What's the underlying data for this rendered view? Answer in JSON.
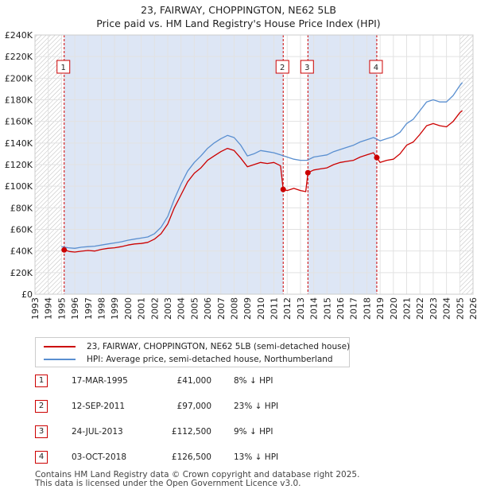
{
  "title_line1": "23, FAIRWAY, CHOPPINGTON, NE62 5LB",
  "title_line2": "Price paid vs. HM Land Registry's House Price Index (HPI)",
  "colors": {
    "price_line": "#cc0000",
    "hpi_line": "#5a8fd0",
    "band": "#dde6f5",
    "dash": "#cc0000"
  },
  "chart_data": {
    "type": "line",
    "x_range": [
      1993.0,
      2026.0
    ],
    "ylim": [
      0,
      240000
    ],
    "y_ticks": [
      {
        "value": 0,
        "label": "£0"
      },
      {
        "value": 20000,
        "label": "£20K"
      },
      {
        "value": 40000,
        "label": "£40K"
      },
      {
        "value": 60000,
        "label": "£60K"
      },
      {
        "value": 80000,
        "label": "£80K"
      },
      {
        "value": 100000,
        "label": "£100K"
      },
      {
        "value": 120000,
        "label": "£120K"
      },
      {
        "value": 140000,
        "label": "£140K"
      },
      {
        "value": 160000,
        "label": "£160K"
      },
      {
        "value": 180000,
        "label": "£180K"
      },
      {
        "value": 200000,
        "label": "£200K"
      },
      {
        "value": 220000,
        "label": "£220K"
      },
      {
        "value": 240000,
        "label": "£240K"
      }
    ],
    "x_ticks": [
      "1993",
      "1994",
      "1995",
      "1996",
      "1997",
      "1998",
      "1999",
      "2000",
      "2001",
      "2002",
      "2003",
      "2004",
      "2005",
      "2006",
      "2007",
      "2008",
      "2009",
      "2010",
      "2011",
      "2012",
      "2013",
      "2014",
      "2015",
      "2016",
      "2017",
      "2018",
      "2019",
      "2020",
      "2021",
      "2022",
      "2023",
      "2024",
      "2025",
      "2026"
    ],
    "shaded_bands": [
      [
        1995.2,
        2011.7
      ],
      [
        2013.56,
        2018.75
      ]
    ],
    "hatched_ranges": [
      [
        1993.0,
        1995.0
      ],
      [
        2025.0,
        2026.0
      ]
    ],
    "series": [
      {
        "name": "23, FAIRWAY, CHOPPINGTON, NE62 5LB (semi-detached house)",
        "color": "#cc0000",
        "points": [
          [
            1995.2,
            41000
          ],
          [
            1995.6,
            39500
          ],
          [
            1996.0,
            39000
          ],
          [
            1996.5,
            39800
          ],
          [
            1997.0,
            40500
          ],
          [
            1997.5,
            40000
          ],
          [
            1998.0,
            41500
          ],
          [
            1998.5,
            42500
          ],
          [
            1999.0,
            43000
          ],
          [
            1999.5,
            44000
          ],
          [
            2000.0,
            45500
          ],
          [
            2000.5,
            46500
          ],
          [
            2001.0,
            47000
          ],
          [
            2001.5,
            48000
          ],
          [
            2002.0,
            51000
          ],
          [
            2002.5,
            56000
          ],
          [
            2003.0,
            65000
          ],
          [
            2003.5,
            80000
          ],
          [
            2004.0,
            92000
          ],
          [
            2004.5,
            104000
          ],
          [
            2005.0,
            112000
          ],
          [
            2005.5,
            117000
          ],
          [
            2006.0,
            124000
          ],
          [
            2006.5,
            128000
          ],
          [
            2007.0,
            132000
          ],
          [
            2007.5,
            135000
          ],
          [
            2008.0,
            133000
          ],
          [
            2008.5,
            126000
          ],
          [
            2009.0,
            118000
          ],
          [
            2009.5,
            120000
          ],
          [
            2010.0,
            122000
          ],
          [
            2010.5,
            121000
          ],
          [
            2011.0,
            122000
          ],
          [
            2011.5,
            119000
          ],
          [
            2011.7,
            97000
          ],
          [
            2012.0,
            96000
          ],
          [
            2012.5,
            98000
          ],
          [
            2013.0,
            96000
          ],
          [
            2013.4,
            95000
          ],
          [
            2013.56,
            112500
          ],
          [
            2014.0,
            115000
          ],
          [
            2014.5,
            116000
          ],
          [
            2015.0,
            117000
          ],
          [
            2015.5,
            120000
          ],
          [
            2016.0,
            122000
          ],
          [
            2016.5,
            123000
          ],
          [
            2017.0,
            124000
          ],
          [
            2017.5,
            127000
          ],
          [
            2018.0,
            129000
          ],
          [
            2018.5,
            131000
          ],
          [
            2018.75,
            126500
          ],
          [
            2019.0,
            122000
          ],
          [
            2019.5,
            124000
          ],
          [
            2020.0,
            125000
          ],
          [
            2020.5,
            130000
          ],
          [
            2021.0,
            138000
          ],
          [
            2021.5,
            141000
          ],
          [
            2022.0,
            148000
          ],
          [
            2022.5,
            156000
          ],
          [
            2023.0,
            158000
          ],
          [
            2023.5,
            156000
          ],
          [
            2024.0,
            155000
          ],
          [
            2024.5,
            160000
          ],
          [
            2025.0,
            168000
          ],
          [
            2025.2,
            170000
          ]
        ]
      },
      {
        "name": "HPI: Average price, semi-detached house, Northumberland",
        "color": "#5a8fd0",
        "points": [
          [
            1995.0,
            44000
          ],
          [
            1995.5,
            43000
          ],
          [
            1996.0,
            42500
          ],
          [
            1996.5,
            43500
          ],
          [
            1997.0,
            44000
          ],
          [
            1997.5,
            44500
          ],
          [
            1998.0,
            45500
          ],
          [
            1998.5,
            46500
          ],
          [
            1999.0,
            47500
          ],
          [
            1999.5,
            48500
          ],
          [
            2000.0,
            50000
          ],
          [
            2000.5,
            51000
          ],
          [
            2001.0,
            52000
          ],
          [
            2001.5,
            53000
          ],
          [
            2002.0,
            56000
          ],
          [
            2002.5,
            62000
          ],
          [
            2003.0,
            72000
          ],
          [
            2003.5,
            88000
          ],
          [
            2004.0,
            102000
          ],
          [
            2004.5,
            114000
          ],
          [
            2005.0,
            122000
          ],
          [
            2005.5,
            128000
          ],
          [
            2006.0,
            135000
          ],
          [
            2006.5,
            140000
          ],
          [
            2007.0,
            144000
          ],
          [
            2007.5,
            147000
          ],
          [
            2008.0,
            145000
          ],
          [
            2008.5,
            138000
          ],
          [
            2009.0,
            128000
          ],
          [
            2009.5,
            130000
          ],
          [
            2010.0,
            133000
          ],
          [
            2010.5,
            132000
          ],
          [
            2011.0,
            131000
          ],
          [
            2011.5,
            129000
          ],
          [
            2012.0,
            127000
          ],
          [
            2012.5,
            125000
          ],
          [
            2013.0,
            124000
          ],
          [
            2013.5,
            124000
          ],
          [
            2014.0,
            127000
          ],
          [
            2014.5,
            128000
          ],
          [
            2015.0,
            129000
          ],
          [
            2015.5,
            132000
          ],
          [
            2016.0,
            134000
          ],
          [
            2016.5,
            136000
          ],
          [
            2017.0,
            138000
          ],
          [
            2017.5,
            141000
          ],
          [
            2018.0,
            143000
          ],
          [
            2018.5,
            145000
          ],
          [
            2019.0,
            142000
          ],
          [
            2019.5,
            144000
          ],
          [
            2020.0,
            146000
          ],
          [
            2020.5,
            150000
          ],
          [
            2021.0,
            158000
          ],
          [
            2021.5,
            162000
          ],
          [
            2022.0,
            170000
          ],
          [
            2022.5,
            178000
          ],
          [
            2023.0,
            180000
          ],
          [
            2023.5,
            178000
          ],
          [
            2024.0,
            178000
          ],
          [
            2024.5,
            184000
          ],
          [
            2025.0,
            193000
          ],
          [
            2025.2,
            196000
          ]
        ]
      }
    ],
    "markers": [
      {
        "label": "1",
        "x": 1995.2,
        "y": 41000
      },
      {
        "label": "2",
        "x": 2011.7,
        "y": 97000
      },
      {
        "label": "3",
        "x": 2013.56,
        "y": 112500
      },
      {
        "label": "4",
        "x": 2018.75,
        "y": 126500
      }
    ]
  },
  "legend": {
    "price": "23, FAIRWAY, CHOPPINGTON, NE62 5LB (semi-detached house)",
    "hpi": "HPI: Average price, semi-detached house, Northumberland"
  },
  "sales": [
    {
      "num": "1",
      "date": "17-MAR-1995",
      "price": "£41,000",
      "hpi": "8% ↓ HPI"
    },
    {
      "num": "2",
      "date": "12-SEP-2011",
      "price": "£97,000",
      "hpi": "23% ↓ HPI"
    },
    {
      "num": "3",
      "date": "24-JUL-2013",
      "price": "£112,500",
      "hpi": "9% ↓ HPI"
    },
    {
      "num": "4",
      "date": "03-OCT-2018",
      "price": "£126,500",
      "hpi": "13% ↓ HPI"
    }
  ],
  "footer_line1": "Contains HM Land Registry data © Crown copyright and database right 2025.",
  "footer_line2": "This data is licensed under the Open Government Licence v3.0."
}
